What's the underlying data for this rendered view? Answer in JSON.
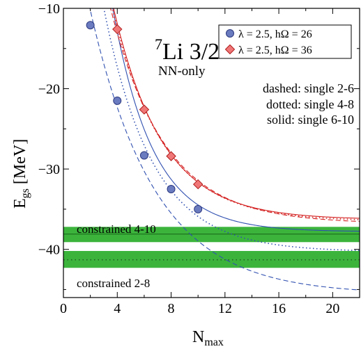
{
  "chart_data": {
    "type": "line",
    "xlabel": "N",
    "xlabel_sub": "max",
    "ylabel": "E",
    "ylabel_sub": "gs",
    "ylabel_unit": " [MeV]",
    "xlim": [
      0,
      22
    ],
    "ylim": [
      -46,
      -10
    ],
    "xticks": [
      0,
      4,
      8,
      12,
      16,
      20
    ],
    "xtick_labels": [
      "0",
      "4",
      "8",
      "12",
      "16",
      "20"
    ],
    "yticks": [
      -40,
      -30,
      -20,
      -10
    ],
    "ytick_labels": [
      "−40",
      "−30",
      "−20",
      "−10"
    ],
    "title": {
      "superscript": "7",
      "main": "Li 3/2",
      "superscript2": "-",
      "subtitle": "NN-only"
    },
    "annotations": {
      "dashed": "dashed: single 2-6",
      "dotted": "dotted: single 4-8",
      "solid": "solid: single 6-10",
      "band_upper": "constrained 4-10",
      "band_lower": "constrained 2-8"
    },
    "legend": {
      "position": "top-right",
      "entries": [
        {
          "lambda": "λ = 2.5, ",
          "h": "h",
          "omega": "Ω = 26",
          "color": "#6b7bbf",
          "marker": "circle"
        },
        {
          "lambda": "λ = 2.5, ",
          "h": "h",
          "omega": "Ω = 36",
          "color": "#f07777",
          "marker": "diamond"
        }
      ]
    },
    "bands": [
      {
        "name": "constrained 4-10",
        "low": -39.1,
        "high": -37.2,
        "center": -38.1,
        "color": "#3cb43c",
        "center_style": "solid"
      },
      {
        "name": "constrained 2-8",
        "low": -42.3,
        "high": -40.2,
        "center": -41.3,
        "color": "#3cb43c",
        "center_style": "dotted"
      }
    ],
    "series": [
      {
        "name": "λ = 2.5, hΩ = 26",
        "color": "#3050b0",
        "marker": "circle",
        "marker_fill": "#6b7bbf",
        "points": [
          [
            2,
            -12.1
          ],
          [
            4,
            -21.5
          ],
          [
            6,
            -28.3
          ],
          [
            8,
            -32.5
          ],
          [
            10,
            -35.0
          ]
        ],
        "fits": [
          {
            "style": "dashed",
            "einf": -45.6,
            "a": 53.7,
            "b": 0.209
          },
          {
            "style": "dotted",
            "einf": -40.3,
            "a": 69.4,
            "b": 0.276
          },
          {
            "style": "solid",
            "einf": -37.8,
            "a": 95.0,
            "b": 0.335
          }
        ]
      },
      {
        "name": "λ = 2.5, hΩ = 36",
        "color": "#d42020",
        "marker": "diamond",
        "marker_fill": "#f07777",
        "points": [
          [
            4,
            -12.6
          ],
          [
            6,
            -22.6
          ],
          [
            8,
            -28.4
          ],
          [
            10,
            -31.9
          ]
        ],
        "fits": [
          {
            "style": "dashed",
            "einf": -36.8,
            "a": 63.9,
            "b": 0.248
          },
          {
            "style": "dotted",
            "einf": -36.5,
            "a": 70.1,
            "b": 0.267
          },
          {
            "style": "solid",
            "einf": -36.3,
            "a": 73.6,
            "b": 0.276
          }
        ]
      }
    ]
  }
}
